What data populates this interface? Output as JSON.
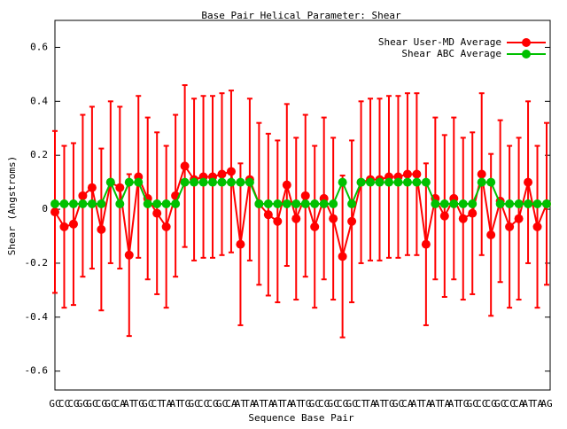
{
  "chart_data": {
    "type": "line",
    "title": "Base Pair Helical Parameter: Shear",
    "xlabel": "Sequence Base Pair",
    "ylabel": "Shear (Angstroms)",
    "categories": [
      "GC",
      "CC",
      "CG",
      "GG",
      "GC",
      "CG",
      "GC",
      "CA",
      "AT",
      "TG",
      "GC",
      "CT",
      "TA",
      "AT",
      "TG",
      "GC",
      "CC",
      "CG",
      "GC",
      "CA",
      "AT",
      "TA",
      "AT",
      "TA",
      "AT",
      "TA",
      "AT",
      "TG",
      "GC",
      "CG",
      "GC",
      "CG",
      "GC",
      "CT",
      "TA",
      "AT",
      "TG",
      "GC",
      "CA",
      "AT",
      "TA",
      "AT",
      "TA",
      "AT",
      "TG",
      "GC",
      "CC",
      "CG",
      "GC",
      "CC",
      "CA",
      "AT",
      "TA",
      "AG"
    ],
    "series": [
      {
        "name": "Shear User-MD Average",
        "color": "#ff0000",
        "values": [
          -0.01,
          -0.065,
          -0.055,
          0.05,
          0.08,
          -0.075,
          0.1,
          0.08,
          -0.17,
          0.12,
          0.04,
          -0.015,
          -0.065,
          0.05,
          0.16,
          0.11,
          0.12,
          0.12,
          0.13,
          0.14,
          -0.13,
          0.11,
          0.02,
          -0.02,
          -0.045,
          0.09,
          -0.035,
          0.05,
          -0.065,
          0.04,
          -0.035,
          -0.175,
          -0.045,
          0.1,
          0.11,
          0.11,
          0.12,
          0.12,
          0.13,
          0.13,
          -0.13,
          0.04,
          -0.025,
          0.04,
          -0.035,
          -0.015,
          0.13,
          -0.095,
          0.03,
          -0.065,
          -0.035,
          0.1,
          -0.065,
          0.02
        ],
        "errors": [
          0.3,
          0.3,
          0.3,
          0.3,
          0.3,
          0.3,
          0.3,
          0.3,
          0.3,
          0.3,
          0.3,
          0.3,
          0.3,
          0.3,
          0.3,
          0.3,
          0.3,
          0.3,
          0.3,
          0.3,
          0.3,
          0.3,
          0.3,
          0.3,
          0.3,
          0.3,
          0.3,
          0.3,
          0.3,
          0.3,
          0.3,
          0.3,
          0.3,
          0.3,
          0.3,
          0.3,
          0.3,
          0.3,
          0.3,
          0.3,
          0.3,
          0.3,
          0.3,
          0.3,
          0.3,
          0.3,
          0.3,
          0.3,
          0.3,
          0.3,
          0.3,
          0.3,
          0.3,
          0.3
        ]
      },
      {
        "name": "Shear ABC Average",
        "color": "#00c000",
        "values": [
          0.02,
          0.02,
          0.02,
          0.02,
          0.02,
          0.02,
          0.1,
          0.02,
          0.1,
          0.1,
          0.02,
          0.02,
          0.02,
          0.02,
          0.1,
          0.1,
          0.1,
          0.1,
          0.1,
          0.1,
          0.1,
          0.1,
          0.02,
          0.02,
          0.02,
          0.02,
          0.02,
          0.02,
          0.02,
          0.02,
          0.02,
          0.1,
          0.02,
          0.1,
          0.1,
          0.1,
          0.1,
          0.1,
          0.1,
          0.1,
          0.1,
          0.02,
          0.02,
          0.02,
          0.02,
          0.02,
          0.1,
          0.1,
          0.02,
          0.02,
          0.02,
          0.02,
          0.02,
          0.02
        ]
      }
    ],
    "ylim": [
      -0.67,
      0.7
    ],
    "yticks": [
      -0.6,
      -0.4,
      -0.2,
      0,
      0.2,
      0.4,
      0.6
    ],
    "legend": "upper right"
  }
}
